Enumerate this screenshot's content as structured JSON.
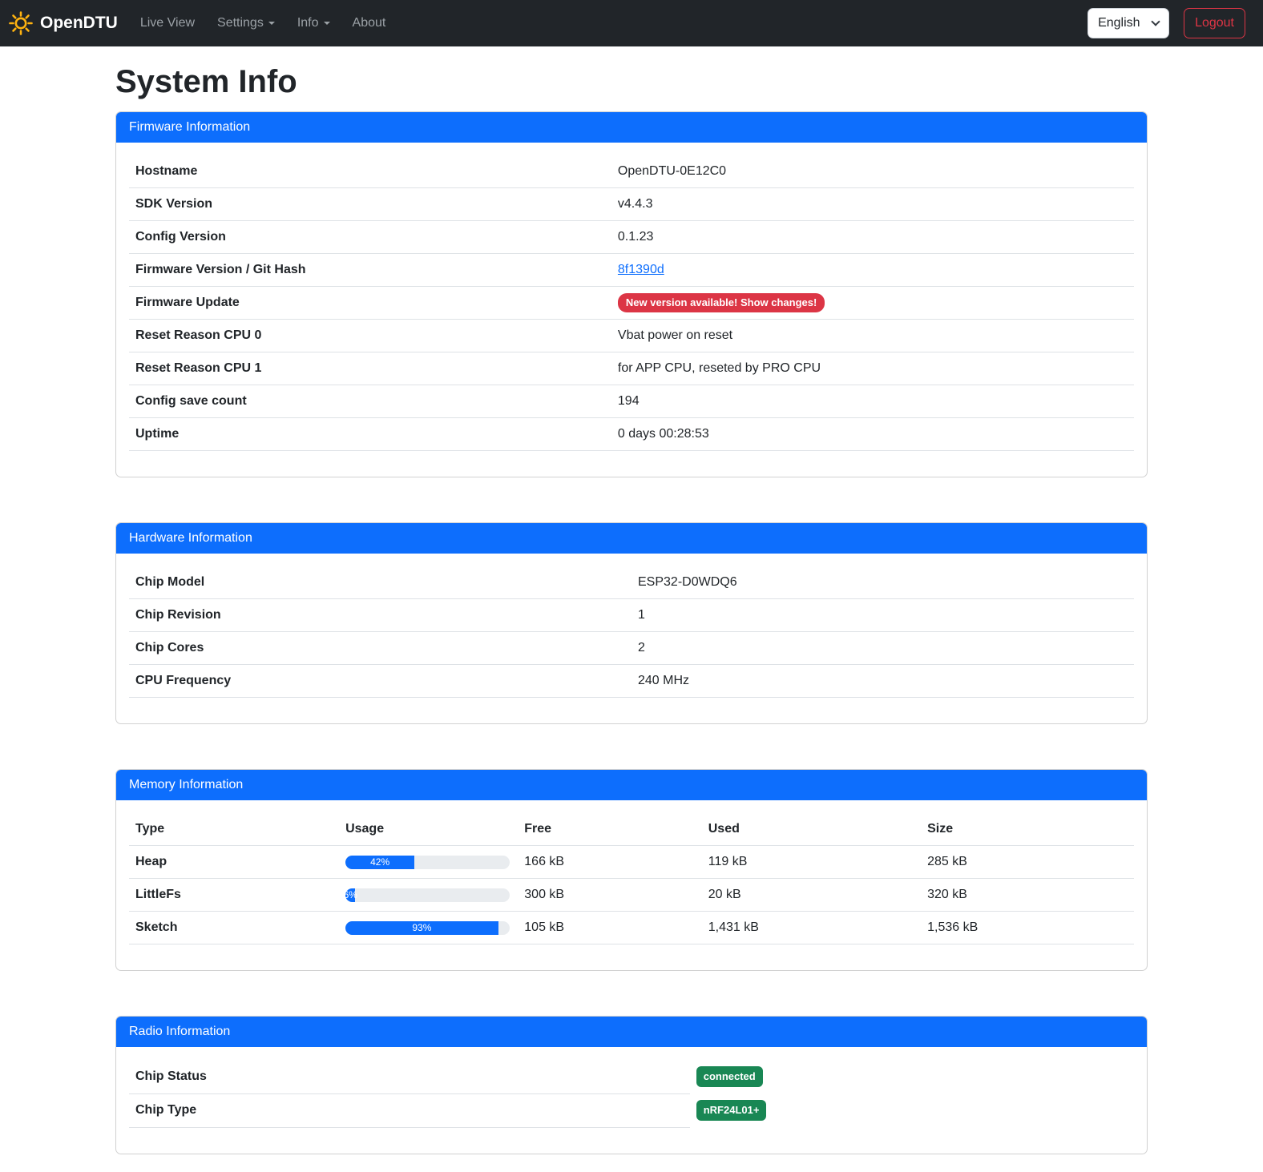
{
  "navbar": {
    "brand": "OpenDTU",
    "links": [
      {
        "label": "Live View"
      },
      {
        "label": "Settings"
      },
      {
        "label": "Info"
      },
      {
        "label": "About"
      }
    ],
    "language_selected": "English",
    "logout_label": "Logout"
  },
  "page_title": "System Info",
  "colors": {
    "accent_blue": "#0d6efd",
    "danger_red": "#dc3545",
    "success_green": "#198754",
    "navbar_dark": "#212529",
    "logo_gold": "#ffb310"
  },
  "cards": {
    "firmware": {
      "title": "Firmware Information",
      "rows": [
        {
          "label": "Hostname",
          "value": "OpenDTU-0E12C0"
        },
        {
          "label": "SDK Version",
          "value": "v4.4.3"
        },
        {
          "label": "Config Version",
          "value": "0.1.23"
        },
        {
          "label": "Firmware Version / Git Hash",
          "value": "8f1390d"
        },
        {
          "label": "Firmware Update",
          "value": "New version available! Show changes!"
        },
        {
          "label": "Reset Reason CPU 0",
          "value": "Vbat power on reset"
        },
        {
          "label": "Reset Reason CPU 1",
          "value": "for APP CPU, reseted by PRO CPU"
        },
        {
          "label": "Config save count",
          "value": "194"
        },
        {
          "label": "Uptime",
          "value": "0 days 00:28:53"
        }
      ]
    },
    "hardware": {
      "title": "Hardware Information",
      "rows": [
        {
          "label": "Chip Model",
          "value": "ESP32-D0WDQ6"
        },
        {
          "label": "Chip Revision",
          "value": "1"
        },
        {
          "label": "Chip Cores",
          "value": "2"
        },
        {
          "label": "CPU Frequency",
          "value": "240 MHz"
        }
      ]
    },
    "memory": {
      "title": "Memory Information",
      "columns": [
        "Type",
        "Usage",
        "Free",
        "Used",
        "Size"
      ],
      "rows": [
        {
          "type": "Heap",
          "usage_percent": 42,
          "usage_label": "42%",
          "free": "166 kB",
          "used": "119 kB",
          "size": "285 kB"
        },
        {
          "type": "LittleFs",
          "usage_percent": 6,
          "usage_label": "6%",
          "free": "300 kB",
          "used": "20 kB",
          "size": "320 kB"
        },
        {
          "type": "Sketch",
          "usage_percent": 93,
          "usage_label": "93%",
          "free": "105 kB",
          "used": "1,431 kB",
          "size": "1,536 kB"
        }
      ]
    },
    "radio": {
      "title": "Radio Information",
      "rows": [
        {
          "label": "Chip Status",
          "value": "connected"
        },
        {
          "label": "Chip Type",
          "value": "nRF24L01+"
        }
      ]
    }
  }
}
